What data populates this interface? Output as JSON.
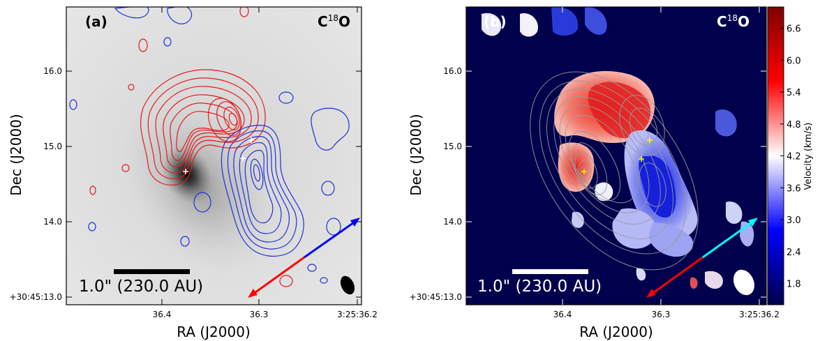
{
  "chart_data": [
    {
      "type": "contour",
      "panel_label": "(a)",
      "molecule": "C18O",
      "molecule_main": "C",
      "molecule_sup": "18",
      "molecule_tail": "O",
      "xlabel": "RA (J2000)",
      "ylabel": "Dec (J2000)",
      "x_ticks": [
        "36.4",
        "36.3",
        "3:25:36.2"
      ],
      "y_ticks": [
        "+30:45:13.0",
        "14.0",
        "15.0",
        "16.0"
      ],
      "background": "grayscale continuum",
      "contour_colors": {
        "redshifted": "#e41a1c",
        "blueshifted": "#1f2fd6"
      },
      "scale_bar_label": "1.0\" (230.0 AU)",
      "outflow_arrow": {
        "red_part": "#ff0000",
        "blue_part": "#0000ff"
      },
      "markers": "white plus signs",
      "beam": "filled black ellipse"
    },
    {
      "type": "heatmap",
      "panel_label": "(b)",
      "molecule": "C18O",
      "molecule_main": "C",
      "molecule_sup": "18",
      "molecule_tail": "O",
      "xlabel": "RA (J2000)",
      "ylabel": "Dec (J2000)",
      "x_ticks": [
        "36.4",
        "36.3",
        "3:25:36.2"
      ],
      "y_ticks": [
        "+30:45:13.0",
        "14.0",
        "15.0",
        "16.0"
      ],
      "colorbar": {
        "label": "Velocity (km/s)",
        "ticks": [
          "1.8",
          "2.4",
          "3.0",
          "3.6",
          "4.2",
          "4.8",
          "5.4",
          "6.0",
          "6.6"
        ],
        "range": [
          1.4,
          7.0
        ],
        "colormap": "seismic"
      },
      "scale_bar_label": "1.0\" (230.0 AU)",
      "outflow_arrow": {
        "red_part": "#ff0000",
        "blue_part": "#00ffff"
      },
      "markers": "yellow plus signs",
      "beam": "filled white ellipse"
    }
  ]
}
